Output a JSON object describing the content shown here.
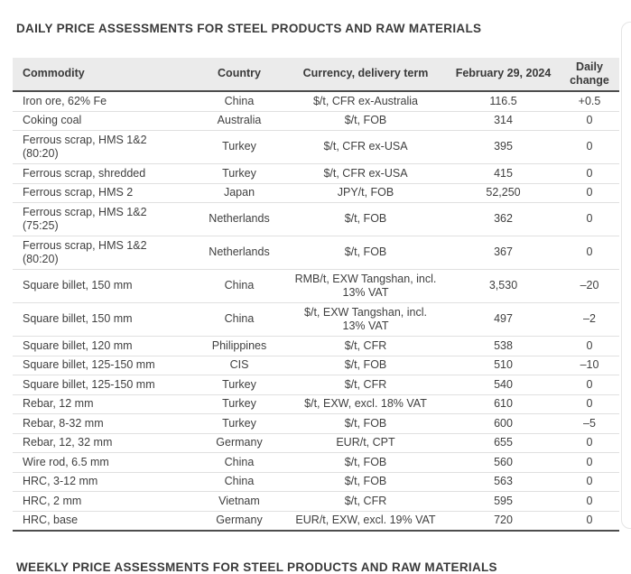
{
  "page": {
    "title": "DAILY PRICE ASSESSMENTS FOR STEEL PRODUCTS AND RAW MATERIALS",
    "next_section_title": "WEEKLY PRICE ASSESSMENTS FOR STEEL PRODUCTS AND RAW MATERIALS"
  },
  "colors": {
    "header_background": "#ebebeb",
    "dark_border": "#4d4d4d",
    "light_border": "#e0e0e0",
    "text": "#3a3a3a"
  },
  "table": {
    "header": {
      "commodity": "Commodity",
      "country": "Country",
      "currency": "Currency, delivery term",
      "date": "February 29, 2024",
      "daily_change": "Daily change"
    },
    "rows": [
      {
        "commodity": "Iron ore, 62% Fe",
        "country": "China",
        "currency": "$/t, CFR ex-Australia",
        "price": "116.5",
        "change": "+0.5"
      },
      {
        "commodity": "Coking coal",
        "country": "Australia",
        "currency": "$/t, FOB",
        "price": "314",
        "change": "0"
      },
      {
        "commodity": "Ferrous scrap, HMS 1&2 (80:20)",
        "country": "Turkey",
        "currency": "$/t, CFR ex-USA",
        "price": "395",
        "change": "0"
      },
      {
        "commodity": "Ferrous scrap, shredded",
        "country": "Turkey",
        "currency": "$/t, CFR ex-USA",
        "price": "415",
        "change": "0"
      },
      {
        "commodity": "Ferrous scrap, HMS 2",
        "country": "Japan",
        "currency": "JPY/t, FOB",
        "price": "52,250",
        "change": "0"
      },
      {
        "commodity": "Ferrous scrap, HMS 1&2 (75:25)",
        "country": "Netherlands",
        "currency": "$/t, FOB",
        "price": "362",
        "change": "0"
      },
      {
        "commodity": "Ferrous scrap, HMS 1&2 (80:20)",
        "country": "Netherlands",
        "currency": "$/t, FOB",
        "price": "367",
        "change": "0"
      },
      {
        "commodity": "Square billet, 150 mm",
        "country": "China",
        "currency": "RMB/t, EXW Tangshan, incl. 13% VAT",
        "price": "3,530",
        "change": "–20"
      },
      {
        "commodity": "Square billet, 150 mm",
        "country": "China",
        "currency": "$/t, EXW Tangshan, incl. 13% VAT",
        "price": "497",
        "change": "–2"
      },
      {
        "commodity": "Square billet, 120 mm",
        "country": "Philippines",
        "currency": "$/t, CFR",
        "price": "538",
        "change": "0"
      },
      {
        "commodity": "Square billet, 125-150 mm",
        "country": "CIS",
        "currency": "$/t, FOB",
        "price": "510",
        "change": "–10"
      },
      {
        "commodity": "Square billet, 125-150 mm",
        "country": "Turkey",
        "currency": "$/t, CFR",
        "price": "540",
        "change": "0"
      },
      {
        "commodity": "Rebar, 12 mm",
        "country": "Turkey",
        "currency": "$/t, EXW, excl. 18% VAT",
        "price": "610",
        "change": "0"
      },
      {
        "commodity": "Rebar, 8-32 mm",
        "country": "Turkey",
        "currency": "$/t, FOB",
        "price": "600",
        "change": "–5"
      },
      {
        "commodity": "Rebar, 12, 32 mm",
        "country": "Germany",
        "currency": "EUR/t, CPT",
        "price": "655",
        "change": "0"
      },
      {
        "commodity": "Wire rod, 6.5 mm",
        "country": "China",
        "currency": "$/t, FOB",
        "price": "560",
        "change": "0"
      },
      {
        "commodity": "HRC, 3-12 mm",
        "country": "China",
        "currency": "$/t, FOB",
        "price": "563",
        "change": "0"
      },
      {
        "commodity": "HRC, 2 mm",
        "country": "Vietnam",
        "currency": "$/t, CFR",
        "price": "595",
        "change": "0"
      },
      {
        "commodity": "HRC, base",
        "country": "Germany",
        "currency": "EUR/t, EXW, excl. 19% VAT",
        "price": "720",
        "change": "0"
      }
    ]
  }
}
